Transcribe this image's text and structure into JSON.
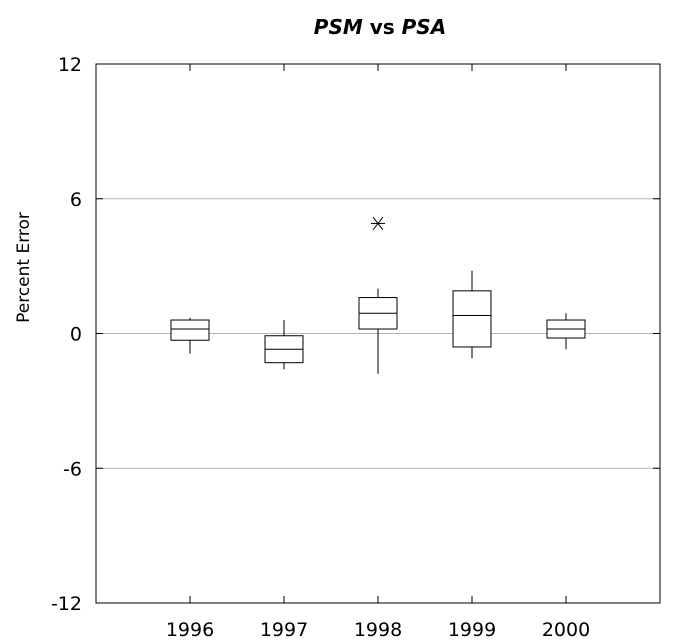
{
  "chart_data": {
    "type": "box",
    "title": {
      "part1": "PSM",
      "part2": " vs ",
      "part3": "PSA"
    },
    "xlabel": "",
    "ylabel": "Percent Error",
    "ylim": [
      -12,
      12
    ],
    "yticks": [
      12,
      6,
      0,
      -6,
      -12
    ],
    "grid_y": [
      6,
      0,
      -6
    ],
    "categories": [
      "1996",
      "1997",
      "1998",
      "1999",
      "2000"
    ],
    "boxes": [
      {
        "category": "1996",
        "whisker_low": -0.9,
        "q1": -0.3,
        "median": 0.2,
        "q3": 0.6,
        "whisker_high": 0.7,
        "outliers": []
      },
      {
        "category": "1997",
        "whisker_low": -1.6,
        "q1": -1.3,
        "median": -0.7,
        "q3": -0.1,
        "whisker_high": 0.6,
        "outliers": []
      },
      {
        "category": "1998",
        "whisker_low": -1.8,
        "q1": 0.2,
        "median": 0.9,
        "q3": 1.6,
        "whisker_high": 2.0,
        "outliers": [
          4.9
        ]
      },
      {
        "category": "1999",
        "whisker_low": -1.1,
        "q1": -0.6,
        "median": 0.8,
        "q3": 1.9,
        "whisker_high": 2.8,
        "outliers": []
      },
      {
        "category": "2000",
        "whisker_low": -0.7,
        "q1": -0.2,
        "median": 0.2,
        "q3": 0.6,
        "whisker_high": 0.9,
        "outliers": []
      }
    ],
    "colors": {
      "gridline": "#b5b5b5",
      "axis": "#000000",
      "box": "#000000"
    }
  }
}
